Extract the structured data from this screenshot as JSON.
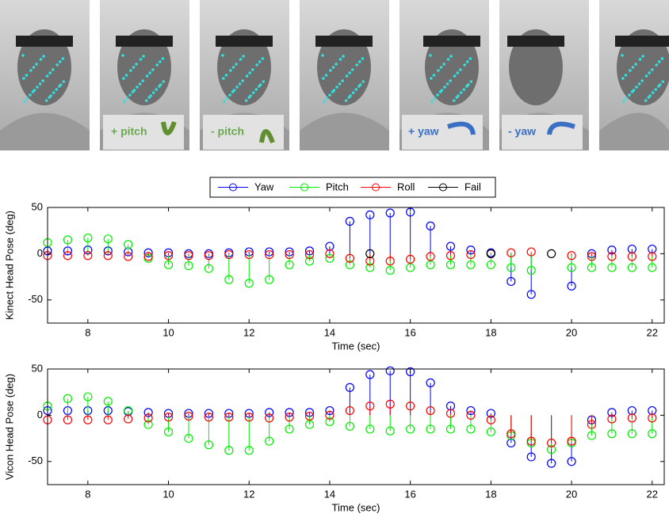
{
  "photo_labels": [
    "+ pitch",
    "- pitch",
    "+ yaw",
    "- yaw"
  ],
  "chart_data": [
    {
      "type": "stem",
      "ylabel": "Kinect Head Pose (deg)",
      "xlabel": "Time (sec)",
      "x": [
        7,
        7.5,
        8,
        8.5,
        9,
        9.5,
        10,
        10.5,
        11,
        11.5,
        12,
        12.5,
        13,
        13.5,
        14,
        14.5,
        15,
        15.5,
        16,
        16.5,
        17,
        17.5,
        18,
        18.5,
        19,
        19.5,
        20,
        20.5,
        21,
        21.5,
        22
      ],
      "xlim": [
        7,
        22.3
      ],
      "xticks": [
        8,
        10,
        12,
        14,
        16,
        18,
        20,
        22
      ],
      "ylim": [
        -75,
        50
      ],
      "yticks": [
        -50,
        0,
        50
      ],
      "series": [
        {
          "name": "Yaw",
          "color": "#0000ff",
          "values": [
            3,
            3,
            4,
            3,
            2,
            1,
            1,
            0,
            0,
            1,
            2,
            2,
            2,
            3,
            8,
            35,
            42,
            44,
            45,
            30,
            8,
            4,
            1,
            -30,
            -44,
            null,
            -35,
            0,
            4,
            5,
            5
          ]
        },
        {
          "name": "Pitch",
          "color": "#00ee00",
          "values": [
            12,
            15,
            17,
            16,
            10,
            -5,
            -12,
            -13,
            -16,
            -28,
            -32,
            -28,
            -12,
            -8,
            -5,
            -12,
            -15,
            -18,
            -15,
            -12,
            -12,
            -12,
            -12,
            -15,
            -18,
            null,
            -15,
            -15,
            -15,
            -15,
            -15
          ]
        },
        {
          "name": "Roll",
          "color": "#ff0000",
          "values": [
            -2,
            -2,
            -2,
            -2,
            -3,
            -3,
            -2,
            -2,
            -2,
            -1,
            -1,
            -1,
            -1,
            -1,
            0,
            -5,
            -8,
            -8,
            -6,
            -3,
            -2,
            -1,
            0,
            1,
            2,
            null,
            -2,
            -3,
            -3,
            -3,
            -3
          ]
        },
        {
          "name": "Fail",
          "color": "#000000",
          "values": [
            null,
            null,
            null,
            null,
            null,
            null,
            null,
            null,
            null,
            null,
            null,
            null,
            null,
            null,
            null,
            null,
            0,
            null,
            null,
            null,
            null,
            null,
            0,
            null,
            null,
            0,
            null,
            null,
            null,
            null,
            null
          ]
        }
      ]
    },
    {
      "type": "stem",
      "ylabel": "Vicon Head Pose (deg)",
      "xlabel": "Time (sec)",
      "x": [
        7,
        7.5,
        8,
        8.5,
        9,
        9.5,
        10,
        10.5,
        11,
        11.5,
        12,
        12.5,
        13,
        13.5,
        14,
        14.5,
        15,
        15.5,
        16,
        16.5,
        17,
        17.5,
        18,
        18.5,
        19,
        19.5,
        20,
        20.5,
        21,
        21.5,
        22
      ],
      "xlim": [
        7,
        22.3
      ],
      "xticks": [
        8,
        10,
        12,
        14,
        16,
        18,
        20,
        22
      ],
      "ylim": [
        -75,
        50
      ],
      "yticks": [
        -50,
        0,
        50
      ],
      "series": [
        {
          "color": "#0000ff",
          "values": [
            5,
            5,
            5,
            5,
            4,
            3,
            2,
            2,
            2,
            2,
            2,
            3,
            3,
            3,
            5,
            30,
            44,
            48,
            47,
            35,
            10,
            5,
            2,
            -30,
            -45,
            -52,
            -50,
            -5,
            3,
            5,
            5
          ]
        },
        {
          "color": "#00ee00",
          "values": [
            10,
            18,
            20,
            15,
            5,
            -10,
            -18,
            -25,
            -32,
            -38,
            -38,
            -28,
            -15,
            -10,
            -7,
            -12,
            -15,
            -17,
            -15,
            -15,
            -15,
            -15,
            -18,
            -22,
            -30,
            -37,
            -30,
            -22,
            -20,
            -20,
            -20
          ]
        },
        {
          "color": "#ff0000",
          "values": [
            -5,
            -5,
            -5,
            -5,
            -4,
            -3,
            -2,
            -1,
            -2,
            -2,
            -2,
            -3,
            -2,
            -1,
            0,
            5,
            10,
            12,
            10,
            5,
            2,
            0,
            -5,
            -20,
            -28,
            -30,
            -28,
            -10,
            -4,
            -3,
            -3
          ]
        }
      ]
    }
  ]
}
